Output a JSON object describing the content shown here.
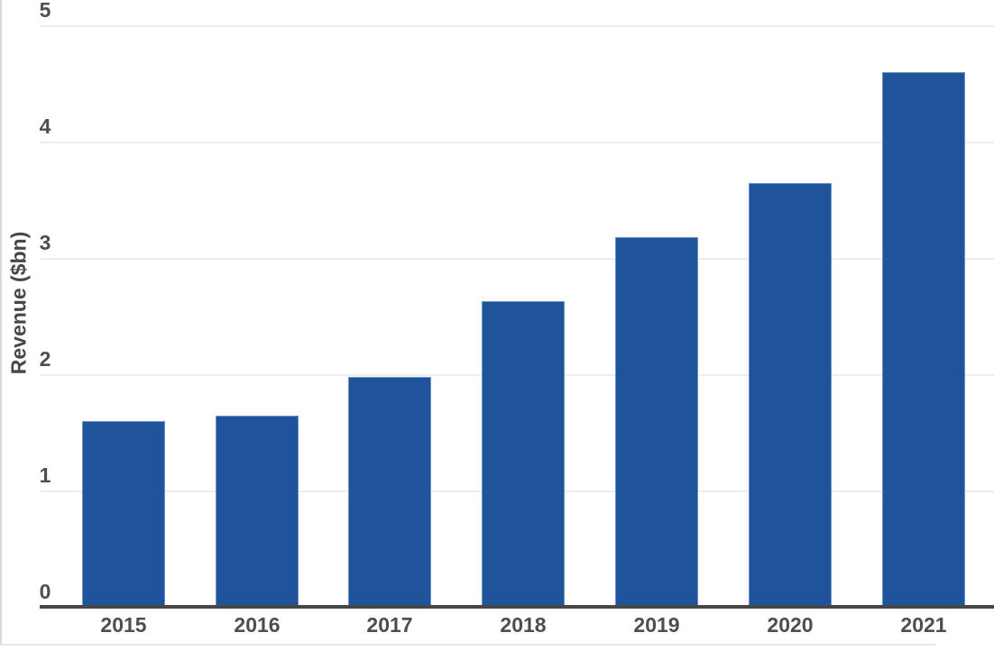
{
  "chart_data": {
    "type": "bar",
    "title": "",
    "categories": [
      "2015",
      "2016",
      "2017",
      "2018",
      "2019",
      "2020",
      "2021"
    ],
    "values": [
      1.6,
      1.64,
      1.98,
      2.63,
      3.18,
      3.64,
      4.6
    ],
    "xlabel": "",
    "ylabel": "Revenue ($bn)",
    "ylim": [
      0,
      5
    ],
    "yticks": [
      0,
      1,
      2,
      3,
      4,
      5
    ],
    "grid": "horizontal-only",
    "legend": "none",
    "colors": {
      "bar_fill": "#1f549d",
      "bar_border": "#7291c3",
      "gridline": "#ededed",
      "axis_line": "#474747",
      "tick_label": "#4e4e4e",
      "axis_title": "#474747",
      "background": "#ffffff"
    }
  }
}
